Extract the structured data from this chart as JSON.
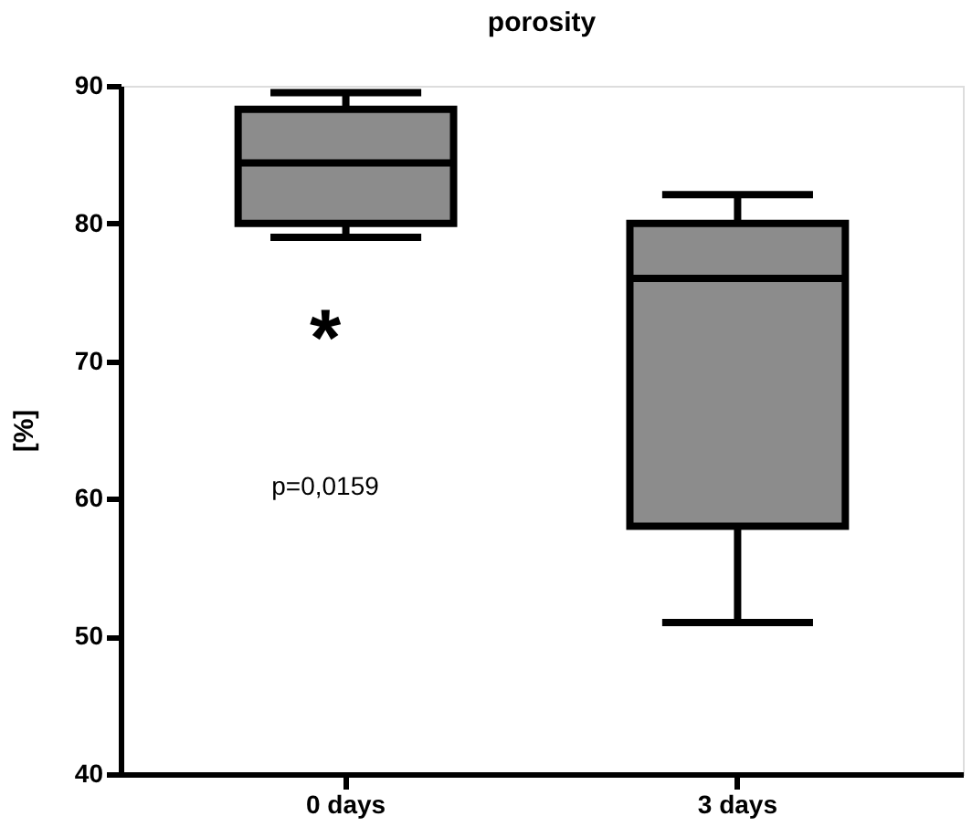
{
  "chart_data": {
    "type": "box",
    "title": "porosity",
    "ylabel": "[%]",
    "categories": [
      "0 days",
      "3 days"
    ],
    "boxes": [
      {
        "low": 79.0,
        "q1": 80.0,
        "median": 84.4,
        "q3": 88.3,
        "high": 89.5
      },
      {
        "low": 51.0,
        "q1": 58.0,
        "median": 76.0,
        "q3": 80.0,
        "high": 82.1
      }
    ],
    "color": "#8c8c8c",
    "ylim": [
      40,
      90
    ],
    "yticks": [
      40,
      50,
      60,
      70,
      80,
      90
    ],
    "grid": false,
    "annotations": [
      "*",
      "p=0,0159"
    ]
  }
}
